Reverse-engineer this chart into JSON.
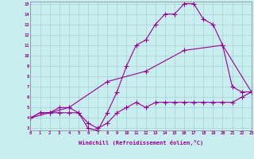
{
  "xlabel": "Windchill (Refroidissement éolien,°C)",
  "xlim": [
    0,
    23
  ],
  "ylim": [
    3,
    15
  ],
  "xticks": [
    0,
    1,
    2,
    3,
    4,
    5,
    6,
    7,
    8,
    9,
    10,
    11,
    12,
    13,
    14,
    15,
    16,
    17,
    18,
    19,
    20,
    21,
    22,
    23
  ],
  "yticks": [
    3,
    4,
    5,
    6,
    7,
    8,
    9,
    10,
    11,
    12,
    13,
    14,
    15
  ],
  "bg_color": "#c8eef0",
  "line_color": "#990099",
  "line1_x": [
    0,
    1,
    2,
    3,
    4,
    5,
    6,
    7,
    8,
    9,
    10,
    11,
    12,
    13,
    14,
    15,
    16,
    17,
    18,
    19,
    20,
    21,
    22,
    23
  ],
  "line1_y": [
    4,
    4.5,
    4.5,
    4.5,
    4.5,
    4.5,
    3.5,
    3.0,
    3.5,
    4.5,
    5.0,
    5.5,
    5.0,
    5.5,
    5.5,
    5.5,
    5.5,
    5.5,
    5.5,
    5.5,
    5.5,
    5.5,
    6.0,
    6.5
  ],
  "line2_x": [
    0,
    1,
    2,
    3,
    4,
    5,
    6,
    7,
    8,
    9,
    10,
    11,
    12,
    13,
    14,
    15,
    16,
    17,
    18,
    19,
    20,
    21,
    22,
    23
  ],
  "line2_y": [
    4,
    4.5,
    4.5,
    5.0,
    5.0,
    4.5,
    3.0,
    2.8,
    4.5,
    6.5,
    9.0,
    11.0,
    11.5,
    13.0,
    14.0,
    14.0,
    15.0,
    15.0,
    13.5,
    13.0,
    11.0,
    7.0,
    6.5,
    6.5
  ],
  "line3_x": [
    0,
    4,
    8,
    12,
    16,
    20,
    23
  ],
  "line3_y": [
    4,
    5.0,
    7.5,
    8.5,
    10.5,
    11.0,
    6.5
  ]
}
